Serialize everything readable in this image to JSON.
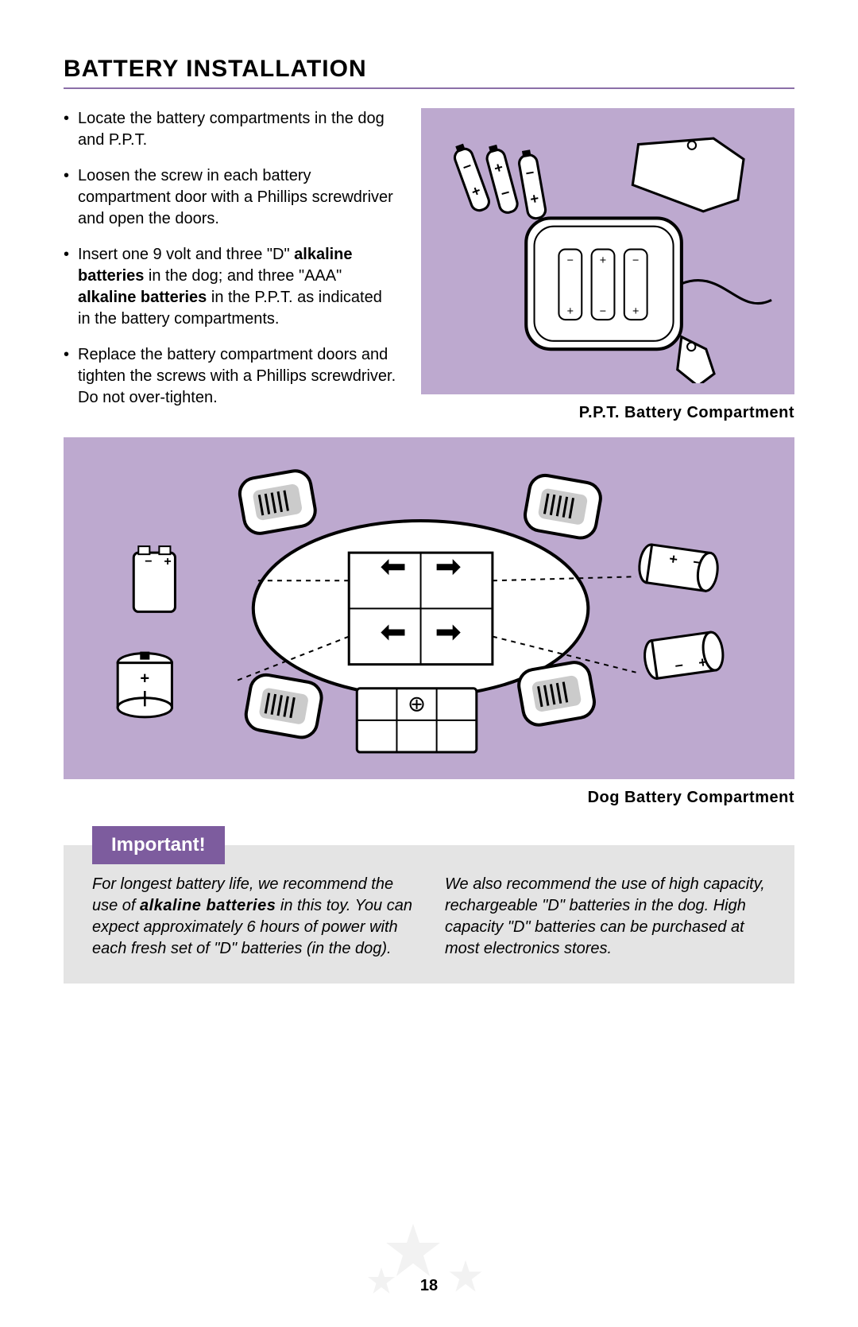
{
  "section_title": "BATTERY INSTALLATION",
  "steps": [
    "Locate the battery compartments in the dog and P.P.T.",
    "Loosen the screw in each battery compartment door with a Phillips screwdriver and open the doors.",
    "Insert one 9 volt and three \"D\" <b class='strong'>alkaline batteries</b> in the dog; and three \"AAA\" <b class='strong'>alkaline batteries</b> in the P.P.T. as indicated in the battery compartments.",
    "Replace the battery compartment doors and tighten the screws with a Phillips screwdriver. Do not over-tighten."
  ],
  "figure1": {
    "caption": "P.P.T. Battery Compartment",
    "alt": "Line drawing: P.P.T. device open with three AAA batteries and cover",
    "bg": "#bda9cf"
  },
  "figure2": {
    "caption": "Dog Battery Compartment",
    "alt": "Line drawing: underside of toy dog with 9V + three D batteries and cover",
    "bg": "#bda9cf"
  },
  "important": {
    "label": "Important!",
    "col1": "For longest battery life, we recommend the use of <b>alkaline batteries</b> in this toy. You can expect approximately 6 hours of power with each fresh set of \"D\" batteries (in the dog).",
    "col2": "We also recommend the use of high capacity, rechargeable \"D\" batteries in the dog. High capacity \"D\" batteries can be purchased at most electronics stores."
  },
  "page_number": "18",
  "colors": {
    "purple_accent": "#7d5c9e",
    "lavender_bg": "#bda9cf",
    "rule": "#8b6fa8",
    "gray_box": "#e4e4e4",
    "star": "#c9c9c9"
  }
}
